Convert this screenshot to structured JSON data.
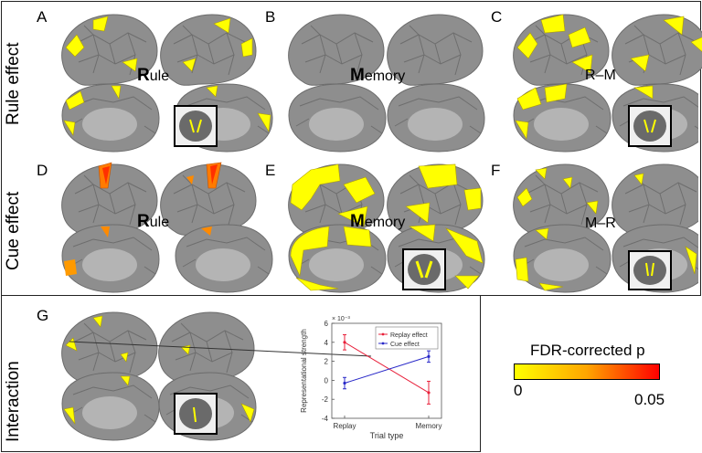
{
  "panels": {
    "A": {
      "letter": "A",
      "bold": "R",
      "rest": "ule"
    },
    "B": {
      "letter": "B",
      "bold": "M",
      "rest": "emory"
    },
    "C": {
      "letter": "C",
      "text": "R–M"
    },
    "D": {
      "letter": "D",
      "bold": "R",
      "rest": "ule"
    },
    "E": {
      "letter": "E",
      "bold": "M",
      "rest": "emory"
    },
    "F": {
      "letter": "F",
      "text": "M–R"
    },
    "G": {
      "letter": "G"
    }
  },
  "row_labels": {
    "rule": "Rule effect",
    "cue": "Cue effect",
    "interaction": "Interaction"
  },
  "colorbar": {
    "title": "FDR-corrected p",
    "min_label": "0",
    "max_label": "0.05",
    "colors": [
      "#ffff00",
      "#ffa500",
      "#ff0000"
    ]
  },
  "chart_data": {
    "type": "line",
    "categories": [
      "Replay",
      "Memory"
    ],
    "series": [
      {
        "name": "Replay effect",
        "color": "#e8203a",
        "values": [
          4,
          -1.3
        ],
        "errors": [
          0.8,
          1.2
        ]
      },
      {
        "name": "Cue effect",
        "color": "#2828c8",
        "values": [
          -0.3,
          2.5
        ],
        "errors": [
          0.6,
          0.6
        ]
      }
    ],
    "ylabel": "Representational strength",
    "y_exponent": "× 10⁻³",
    "xlabel": "Trial type",
    "ylim": [
      -4,
      6
    ],
    "yticks": [
      "6",
      "4",
      "2",
      "0",
      "-2",
      "-4"
    ],
    "legend_position": "top-right"
  }
}
